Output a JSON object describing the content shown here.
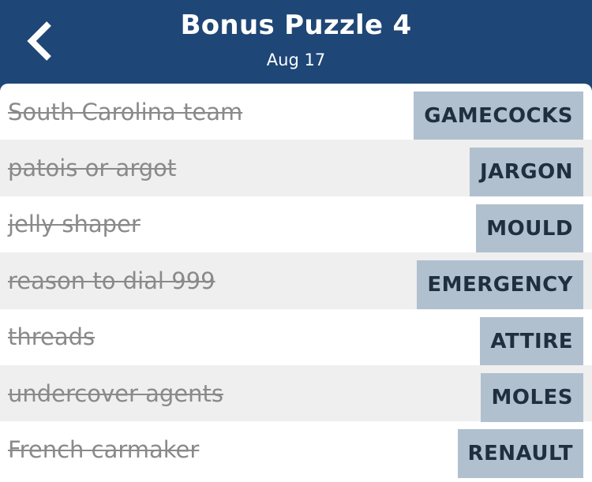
{
  "header": {
    "title": "Bonus Puzzle 4",
    "date": "Aug 17",
    "back_icon": "chevron-left-icon"
  },
  "colors": {
    "header_bg": "#1e4676",
    "answer_bg": "#b1c0cf",
    "answer_text": "#1f2f40",
    "solved_clue_text": "#8a8a8a",
    "alt_row_bg": "#efefef"
  },
  "clues": [
    {
      "clue": "South Carolina team",
      "answer": "GAMECOCKS"
    },
    {
      "clue": "patois or argot",
      "answer": "JARGON"
    },
    {
      "clue": "jelly shaper",
      "answer": "MOULD"
    },
    {
      "clue": "reason to dial 999",
      "answer": "EMERGENCY"
    },
    {
      "clue": "threads",
      "answer": "ATTIRE"
    },
    {
      "clue": "undercover agents",
      "answer": "MOLES"
    },
    {
      "clue": "French carmaker",
      "answer": "RENAULT"
    }
  ]
}
